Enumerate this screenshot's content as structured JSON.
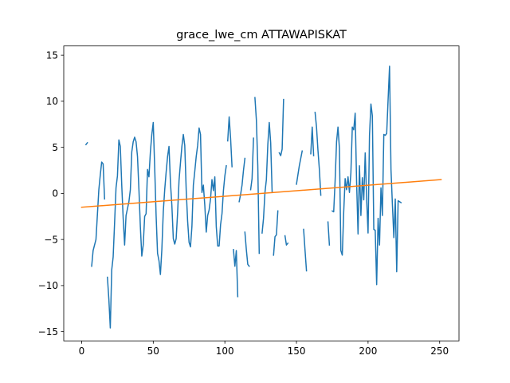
{
  "chart_data": {
    "type": "line",
    "title": "grace_lwe_cm ATTAWAPISKAT",
    "xlabel": "",
    "ylabel": "",
    "xlim": [
      -12.5,
      263.5
    ],
    "ylim": [
      -16,
      16
    ],
    "xticks": [
      0,
      50,
      100,
      150,
      200,
      250
    ],
    "yticks": [
      -15,
      -10,
      -5,
      0,
      5,
      10,
      15
    ],
    "grid": false,
    "series": [
      {
        "color": "#1f77b4",
        "segments": [
          [
            [
              3,
              5.3
            ],
            [
              4,
              5.5
            ]
          ],
          [
            [
              7,
              -7.9
            ],
            [
              8,
              -6.2
            ],
            [
              10,
              -5.0
            ],
            [
              12,
              0.4
            ],
            [
              13,
              2.0
            ],
            [
              14,
              3.4
            ],
            [
              15,
              3.2
            ],
            [
              16,
              -0.6
            ]
          ],
          [
            [
              18,
              -9.1
            ],
            [
              19,
              -11.5
            ],
            [
              20,
              -14.6
            ],
            [
              21,
              -8.3
            ],
            [
              22,
              -6.9
            ],
            [
              23,
              -3.2
            ],
            [
              24,
              0.6
            ],
            [
              25,
              1.9
            ],
            [
              26,
              5.8
            ],
            [
              27,
              5.1
            ],
            [
              28,
              0.9
            ],
            [
              29,
              -2.7
            ],
            [
              30,
              -5.6
            ],
            [
              31,
              -2.4
            ],
            [
              33,
              -0.9
            ],
            [
              34,
              0.4
            ],
            [
              35,
              4.5
            ],
            [
              36,
              5.6
            ],
            [
              37,
              6.1
            ],
            [
              38,
              5.6
            ],
            [
              39,
              4.0
            ],
            [
              40,
              0.4
            ],
            [
              41,
              -3.6
            ],
            [
              42,
              -6.8
            ],
            [
              43,
              -5.6
            ],
            [
              44,
              -2.5
            ],
            [
              45,
              -2.2
            ],
            [
              46,
              2.6
            ],
            [
              47,
              1.8
            ],
            [
              48,
              4.5
            ],
            [
              49,
              6.4
            ],
            [
              50,
              7.7
            ],
            [
              51,
              2.8
            ],
            [
              52,
              -2.4
            ],
            [
              53,
              -6.5
            ],
            [
              54,
              -7.3
            ],
            [
              55,
              -8.8
            ],
            [
              56,
              -6.1
            ],
            [
              57,
              -2.0
            ],
            [
              58,
              0.4
            ],
            [
              59,
              2.3
            ],
            [
              60,
              4.0
            ],
            [
              61,
              5.1
            ],
            [
              62,
              1.2
            ],
            [
              63,
              -1.3
            ],
            [
              64,
              -4.9
            ],
            [
              65,
              -5.5
            ],
            [
              66,
              -4.9
            ],
            [
              67,
              -2.1
            ],
            [
              68,
              1.4
            ],
            [
              69,
              3.3
            ],
            [
              70,
              5.1
            ],
            [
              71,
              6.4
            ],
            [
              72,
              5.2
            ],
            [
              73,
              0.4
            ],
            [
              74,
              -3.0
            ],
            [
              75,
              -5.3
            ],
            [
              76,
              -5.8
            ],
            [
              77,
              -3.6
            ],
            [
              78,
              0.9
            ],
            [
              79,
              2.4
            ],
            [
              80,
              4.0
            ],
            [
              81,
              5.2
            ],
            [
              82,
              7.1
            ],
            [
              83,
              6.4
            ],
            [
              84,
              0.1
            ],
            [
              85,
              0.9
            ],
            [
              86,
              -1.3
            ],
            [
              87,
              -4.2
            ],
            [
              88,
              -2.4
            ],
            [
              89,
              -1.8
            ],
            [
              90,
              -0.6
            ],
            [
              91,
              1.5
            ],
            [
              92,
              0.3
            ],
            [
              93,
              1.8
            ],
            [
              94,
              -3.6
            ],
            [
              95,
              -5.7
            ],
            [
              96,
              -5.7
            ],
            [
              97,
              -3.4
            ],
            [
              98,
              -2.2
            ],
            [
              99,
              0.3
            ],
            [
              100,
              1.9
            ],
            [
              101,
              3.0
            ]
          ],
          [
            [
              102,
              5.7
            ],
            [
              103,
              8.3
            ],
            [
              104,
              6.0
            ],
            [
              105,
              2.9
            ]
          ],
          [
            [
              106,
              -6.1
            ],
            [
              107,
              -7.9
            ],
            [
              108,
              -6.2
            ],
            [
              109,
              -11.2
            ]
          ],
          [
            [
              110,
              -0.9
            ],
            [
              111,
              -0.1
            ],
            [
              112,
              0.9
            ],
            [
              113,
              2.5
            ],
            [
              114,
              3.8
            ]
          ],
          [
            [
              114,
              -4.2
            ],
            [
              115,
              -6.1
            ],
            [
              116,
              -7.7
            ],
            [
              117,
              -7.9
            ]
          ],
          [
            [
              118,
              0.4
            ],
            [
              119,
              1.6
            ],
            [
              120,
              6.0
            ]
          ],
          [
            [
              121,
              10.4
            ],
            [
              122,
              8.0
            ],
            [
              123,
              3.0
            ],
            [
              124,
              -6.5
            ]
          ],
          [
            [
              126,
              -4.3
            ],
            [
              127,
              -2.7
            ],
            [
              128,
              0.1
            ],
            [
              129,
              1.5
            ],
            [
              130,
              5.3
            ],
            [
              131,
              7.7
            ],
            [
              132,
              5.5
            ],
            [
              133,
              0.2
            ]
          ],
          [
            [
              134,
              -6.7
            ],
            [
              135,
              -4.7
            ],
            [
              136,
              -4.5
            ],
            [
              137,
              -1.9
            ]
          ],
          [
            [
              138,
              4.4
            ],
            [
              139,
              4.1
            ],
            [
              140,
              4.8
            ],
            [
              141,
              10.2
            ]
          ],
          [
            [
              142,
              -4.6
            ],
            [
              143,
              -5.6
            ],
            [
              144,
              -5.4
            ]
          ],
          [
            [
              150,
              1.0
            ],
            [
              152,
              3.0
            ],
            [
              154,
              4.6
            ]
          ],
          [
            [
              155,
              -3.9
            ],
            [
              156,
              -6.2
            ],
            [
              157,
              -8.4
            ]
          ],
          [
            [
              160,
              4.3
            ],
            [
              161,
              7.2
            ],
            [
              162,
              4.1
            ]
          ],
          [
            [
              163,
              8.8
            ],
            [
              164,
              7.2
            ],
            [
              165,
              4.7
            ],
            [
              166,
              2.6
            ],
            [
              167,
              -0.2
            ]
          ],
          [
            [
              172,
              -3.1
            ],
            [
              173,
              -5.6
            ]
          ],
          [
            [
              175,
              -1.9
            ],
            [
              176,
              -2.0
            ],
            [
              177,
              1.4
            ],
            [
              178,
              5.6
            ],
            [
              179,
              7.2
            ],
            [
              180,
              4.9
            ],
            [
              181,
              -6.2
            ],
            [
              182,
              -6.7
            ],
            [
              183,
              -2.0
            ],
            [
              184,
              1.6
            ],
            [
              185,
              0.4
            ],
            [
              186,
              1.8
            ],
            [
              187,
              0.1
            ],
            [
              188,
              2.2
            ],
            [
              189,
              7.2
            ],
            [
              190,
              6.9
            ],
            [
              191,
              8.7
            ],
            [
              192,
              1.2
            ],
            [
              193,
              -4.4
            ],
            [
              194,
              3.0
            ],
            [
              195,
              -2.4
            ],
            [
              196,
              1.7
            ],
            [
              197,
              -0.7
            ],
            [
              198,
              4.4
            ],
            [
              199,
              -0.6
            ],
            [
              200,
              -4.3
            ],
            [
              201,
              6.3
            ],
            [
              202,
              9.7
            ],
            [
              203,
              8.4
            ],
            [
              204,
              -3.9
            ],
            [
              205,
              -4.0
            ],
            [
              206,
              -9.9
            ],
            [
              207,
              -2.7
            ],
            [
              208,
              -5.6
            ],
            [
              209,
              0.6
            ],
            [
              210,
              -2.4
            ],
            [
              211,
              6.4
            ],
            [
              212,
              6.3
            ],
            [
              213,
              6.5
            ],
            [
              214,
              10.2
            ],
            [
              215,
              13.8
            ],
            [
              216,
              2.6
            ],
            [
              217,
              -1.2
            ],
            [
              218,
              -4.8
            ],
            [
              219,
              -0.6
            ],
            [
              220,
              -8.5
            ],
            [
              221,
              -0.8
            ],
            [
              222,
              -0.9
            ],
            [
              223,
              -1.0
            ]
          ]
        ]
      },
      {
        "color": "#ff7f0e",
        "points": [
          [
            0,
            -1.5
          ],
          [
            251,
            1.5
          ]
        ]
      }
    ]
  }
}
